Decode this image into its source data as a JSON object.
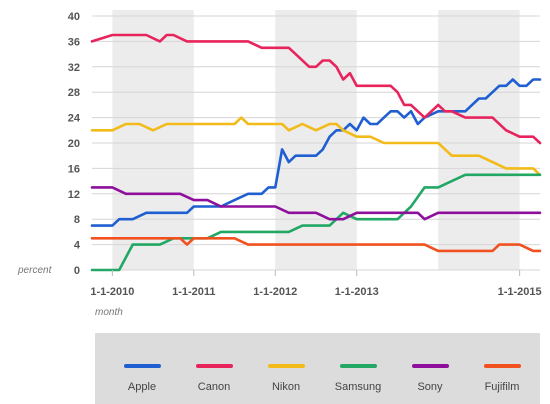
{
  "chart_data": {
    "type": "line",
    "title": "",
    "xlabel": "month",
    "ylabel": "percent",
    "ylim": [
      0,
      40
    ],
    "y_ticks": [
      0,
      4,
      8,
      12,
      16,
      20,
      24,
      28,
      32,
      36,
      40
    ],
    "x_ticks": [
      "1-1-2010",
      "1-1-2011",
      "1-1-2012",
      "1-1-2013",
      "1-1-2015"
    ],
    "x_range": [
      "2009-10",
      "2015-04"
    ],
    "grid": true,
    "background_bands": "alternating yearly shading",
    "legend_position": "bottom",
    "series": [
      {
        "name": "Apple",
        "color": "#1f5fd1",
        "x": [
          "2009-10",
          "2010-01",
          "2010-02",
          "2010-04",
          "2010-06",
          "2010-08",
          "2010-10",
          "2010-12",
          "2011-01",
          "2011-03",
          "2011-05",
          "2011-07",
          "2011-09",
          "2011-11",
          "2011-12",
          "2012-01",
          "2012-02",
          "2012-03",
          "2012-04",
          "2012-05",
          "2012-06",
          "2012-07",
          "2012-08",
          "2012-09",
          "2012-10",
          "2012-11",
          "2012-12",
          "2013-01",
          "2013-02",
          "2013-03",
          "2013-04",
          "2013-05",
          "2013-06",
          "2013-07",
          "2013-08",
          "2013-09",
          "2013-10",
          "2013-11",
          "2014-01",
          "2014-02",
          "2014-03",
          "2014-04",
          "2014-05",
          "2014-07",
          "2014-08",
          "2014-09",
          "2014-10",
          "2014-11",
          "2014-12",
          "2015-01",
          "2015-02",
          "2015-03",
          "2015-04"
        ],
        "values": [
          7,
          7,
          8,
          8,
          9,
          9,
          9,
          9,
          10,
          10,
          10,
          11,
          12,
          12,
          13,
          13,
          19,
          17,
          18,
          18,
          18,
          18,
          19,
          21,
          22,
          22,
          23,
          22,
          24,
          23,
          23,
          24,
          25,
          25,
          24,
          25,
          23,
          24,
          25,
          25,
          25,
          25,
          25,
          27,
          27,
          28,
          29,
          29,
          30,
          29,
          29,
          30,
          30
        ]
      },
      {
        "name": "Canon",
        "color": "#e8245d",
        "x": [
          "2009-10",
          "2010-01",
          "2010-03",
          "2010-05",
          "2010-06",
          "2010-08",
          "2010-09",
          "2010-10",
          "2010-12",
          "2011-02",
          "2011-04",
          "2011-06",
          "2011-07",
          "2011-09",
          "2011-11",
          "2011-12",
          "2012-01",
          "2012-02",
          "2012-03",
          "2012-04",
          "2012-06",
          "2012-07",
          "2012-08",
          "2012-09",
          "2012-10",
          "2012-11",
          "2012-12",
          "2013-01",
          "2013-03",
          "2013-04",
          "2013-05",
          "2013-06",
          "2013-07",
          "2013-08",
          "2013-09",
          "2013-10",
          "2013-11",
          "2013-12",
          "2014-01",
          "2014-02",
          "2014-03",
          "2014-05",
          "2014-06",
          "2014-07",
          "2014-08",
          "2014-09",
          "2014-11",
          "2015-01",
          "2015-02",
          "2015-03",
          "2015-04"
        ],
        "values": [
          36,
          37,
          37,
          37,
          37,
          36,
          37,
          37,
          36,
          36,
          36,
          36,
          36,
          36,
          35,
          35,
          35,
          35,
          35,
          34,
          32,
          32,
          33,
          33,
          32,
          30,
          31,
          29,
          29,
          29,
          29,
          29,
          28,
          26,
          26,
          25,
          24,
          25,
          26,
          25,
          25,
          24,
          24,
          24,
          24,
          24,
          22,
          21,
          21,
          21,
          20
        ]
      },
      {
        "name": "Nikon",
        "color": "#f2bb1a",
        "x": [
          "2009-10",
          "2010-01",
          "2010-03",
          "2010-05",
          "2010-07",
          "2010-09",
          "2010-11",
          "2011-01",
          "2011-03",
          "2011-05",
          "2011-07",
          "2011-08",
          "2011-09",
          "2011-11",
          "2012-01",
          "2012-02",
          "2012-03",
          "2012-05",
          "2012-07",
          "2012-09",
          "2012-10",
          "2012-11",
          "2013-01",
          "2013-03",
          "2013-05",
          "2013-07",
          "2013-09",
          "2013-11",
          "2014-01",
          "2014-03",
          "2014-04",
          "2014-05",
          "2014-07",
          "2014-09",
          "2014-11",
          "2015-01",
          "2015-03",
          "2015-04"
        ],
        "values": [
          22,
          22,
          23,
          23,
          22,
          23,
          23,
          23,
          23,
          23,
          23,
          24,
          23,
          23,
          23,
          23,
          22,
          23,
          22,
          23,
          23,
          22,
          21,
          21,
          20,
          20,
          20,
          20,
          20,
          18,
          18,
          18,
          18,
          17,
          16,
          16,
          16,
          15
        ]
      },
      {
        "name": "Samsung",
        "color": "#22a765",
        "x": [
          "2009-10",
          "2010-01",
          "2010-02",
          "2010-04",
          "2010-06",
          "2010-08",
          "2010-10",
          "2010-12",
          "2011-01",
          "2011-03",
          "2011-05",
          "2011-07",
          "2011-09",
          "2011-11",
          "2012-01",
          "2012-03",
          "2012-05",
          "2012-07",
          "2012-08",
          "2012-09",
          "2012-10",
          "2012-11",
          "2013-01",
          "2013-03",
          "2013-05",
          "2013-06",
          "2013-07",
          "2013-09",
          "2013-11",
          "2014-01",
          "2014-03",
          "2014-05",
          "2014-07",
          "2014-09",
          "2014-11",
          "2015-01",
          "2015-03",
          "2015-04"
        ],
        "values": [
          0,
          0,
          0,
          4,
          4,
          4,
          5,
          5,
          5,
          5,
          6,
          6,
          6,
          6,
          6,
          6,
          7,
          7,
          7,
          7,
          8,
          9,
          8,
          8,
          8,
          8,
          8,
          10,
          13,
          13,
          14,
          15,
          15,
          15,
          15,
          15,
          15,
          15
        ]
      },
      {
        "name": "Sony",
        "color": "#8e0f9c",
        "x": [
          "2009-10",
          "2010-01",
          "2010-03",
          "2010-05",
          "2010-07",
          "2010-09",
          "2010-11",
          "2011-01",
          "2011-03",
          "2011-05",
          "2011-07",
          "2011-09",
          "2011-11",
          "2012-01",
          "2012-03",
          "2012-05",
          "2012-07",
          "2012-09",
          "2012-11",
          "2013-01",
          "2013-03",
          "2013-05",
          "2013-07",
          "2013-09",
          "2013-10",
          "2013-11",
          "2014-01",
          "2014-03",
          "2014-05",
          "2014-07",
          "2014-09",
          "2014-11",
          "2015-01",
          "2015-03",
          "2015-04"
        ],
        "values": [
          13,
          13,
          12,
          12,
          12,
          12,
          12,
          11,
          11,
          10,
          10,
          10,
          10,
          10,
          9,
          9,
          9,
          8,
          8,
          9,
          9,
          9,
          9,
          9,
          9,
          8,
          9,
          9,
          9,
          9,
          9,
          9,
          9,
          9,
          9
        ]
      },
      {
        "name": "Fujifilm",
        "color": "#f0511f",
        "x": [
          "2009-10",
          "2010-01",
          "2010-03",
          "2010-05",
          "2010-07",
          "2010-09",
          "2010-11",
          "2010-12",
          "2011-01",
          "2011-03",
          "2011-05",
          "2011-07",
          "2011-09",
          "2011-11",
          "2012-01",
          "2012-03",
          "2012-05",
          "2012-07",
          "2012-09",
          "2012-11",
          "2013-01",
          "2013-03",
          "2013-05",
          "2013-07",
          "2013-09",
          "2013-11",
          "2014-01",
          "2014-03",
          "2014-05",
          "2014-07",
          "2014-09",
          "2014-10",
          "2014-11",
          "2015-01",
          "2015-03",
          "2015-04"
        ],
        "values": [
          5,
          5,
          5,
          5,
          5,
          5,
          5,
          4,
          5,
          5,
          5,
          5,
          4,
          4,
          4,
          4,
          4,
          4,
          4,
          4,
          4,
          4,
          4,
          4,
          4,
          4,
          3,
          3,
          3,
          3,
          3,
          4,
          4,
          4,
          3,
          3
        ]
      }
    ]
  }
}
